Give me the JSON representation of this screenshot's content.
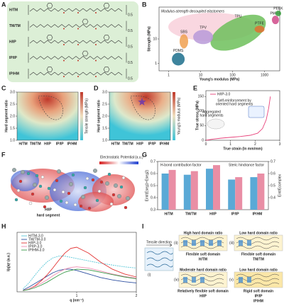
{
  "panel_labels": [
    "A",
    "B",
    "C",
    "D",
    "E",
    "F",
    "G",
    "H",
    "I"
  ],
  "a": {
    "rows": [
      "H/TM",
      "TM/TM",
      "H/IP",
      "IP/IP",
      "IP/HM"
    ],
    "repeat": "0.5"
  },
  "b": {
    "title": "Modulus-strength decoupled elastomers",
    "xlabel": "Young's modulus (MPa)",
    "ylabel": "Strength (MPa)",
    "log": true,
    "xlim": [
      0.5,
      3000
    ],
    "ylim": [
      0.5,
      200
    ],
    "xticks": [
      1,
      10,
      100,
      1000
    ],
    "yticks": [
      1,
      10
    ],
    "regions": [
      {
        "name": "PDMS",
        "x": 2,
        "y": 1.5,
        "color": "#1c6f8c"
      },
      {
        "name": "TPU",
        "x": 150,
        "y": 18,
        "color": "#6dbf5a"
      },
      {
        "name": "TPV",
        "x": 12,
        "y": 12,
        "color": "#b99ad8"
      },
      {
        "name": "SBS",
        "x": 3,
        "y": 8,
        "color": "#f0a050"
      },
      {
        "name": "PTFE",
        "x": 700,
        "y": 25,
        "color": "#e07030"
      },
      {
        "name": "PMMA",
        "x": 2200,
        "y": 60,
        "color": "#d04a8a"
      },
      {
        "name": "PEEK",
        "x": 2700,
        "y": 110,
        "color": "#3aa040"
      }
    ]
  },
  "c": {
    "ylabel": "Hard segment ratio",
    "colorbar": "Tensile strength (MPa)",
    "categories": [
      "H/TM",
      "TM/TM",
      "H/IP",
      "IP/IP",
      "IP/HM"
    ],
    "yticks": [
      {
        "value": 1,
        "label": "1.0"
      },
      1.5,
      {
        "value": 2,
        "label": "2.0"
      },
      2.5,
      {
        "value": 3,
        "label": "3.0"
      }
    ],
    "ylim": [
      1,
      3
    ]
  },
  "d": {
    "ylabel": "Hard segment ratio",
    "colorbar": "Young's modulus (MPa)",
    "categories": [
      "H/TM",
      "TM/TM",
      "H/IP",
      "IP/IP",
      "IP/HM"
    ],
    "yticks": [
      {
        "value": 1,
        "label": "1.0"
      },
      1.5,
      {
        "value": 2,
        "label": "2.0"
      },
      2.5,
      {
        "value": 3,
        "label": "3.0"
      }
    ],
    "ylim": [
      1,
      3
    ]
  },
  "f": {
    "title": "Electrostatic Potential",
    "unit": "(a.u.)",
    "name": "H/IP",
    "subtitle": "hard segment"
  },
  "i": {
    "numerals": [
      "(i)",
      "(ii)",
      "(iii)",
      "(iv)",
      "(v)"
    ],
    "tensile": "Tensile direction",
    "boxes": [
      {
        "top": "High hard domain ratio",
        "bottom": "Flexible soft domain",
        "names": [
          "H/TM"
        ]
      },
      {
        "top": "Low hard domain ratio",
        "bottom": "Flexible soft domain",
        "names": [
          "TM/TM"
        ]
      },
      {
        "top": "Moderate hard domain ratio",
        "bottom": "Relatively flexible soft domain",
        "names": [
          "H/IP"
        ]
      },
      {
        "top": "Low hard domain ratio",
        "bottom": "Rigid soft domain",
        "names": [
          "IP/IP",
          "IP/HM"
        ]
      }
    ]
  },
  "chart_data": [
    {
      "type": "line",
      "xlabel": "True strain (ln mm/mm)",
      "ylabel": "True stress (MPa)",
      "annotations": [
        "Self-reinforcement by",
        "oriented hard segments",
        "Aggregated",
        "hard segments"
      ],
      "x": [
        0,
        0.3,
        0.6,
        1,
        1.4,
        1.8,
        2.1,
        2.3,
        2.45,
        2.55,
        2.62
      ],
      "xlim": [
        0,
        3
      ],
      "ylim": [
        0,
        170
      ],
      "xticks": [
        0,
        1,
        2,
        3
      ],
      "yticks": [
        0,
        50,
        100,
        150
      ],
      "series": [
        {
          "name": "H/IP-3.0",
          "color": "#e8417a",
          "values": [
            0,
            4,
            7,
            10,
            13,
            17,
            24,
            40,
            70,
            110,
            150
          ]
        }
      ]
    },
    {
      "type": "bar",
      "ylabel": "Eint/(Eseg1+Eseg2)",
      "y2label": "Eint/Ecomplex",
      "annotations": [
        "H-bond contribution factor",
        "Steric hindrance factor"
      ],
      "categories": [
        "H/TM",
        "TM/TM",
        "H/IP",
        "IP/IP",
        "IP/HM"
      ],
      "ylim": [
        0.3,
        0.7
      ],
      "yticks": [
        0.3,
        0.4,
        0.5,
        0.6,
        0.7
      ],
      "y2lim": [
        0.3,
        0.7
      ],
      "y2ticks": [
        0.4,
        0.5,
        0.6,
        0.7
      ],
      "series": [
        {
          "color": "#5aa9d6",
          "values": [
            0.6,
            0.59,
            0.64,
            0.55,
            0.57
          ]
        },
        {
          "color": "#e98ea5",
          "axis": "y2",
          "values": [
            0.63,
            0.62,
            0.67,
            0.57,
            0.6
          ]
        }
      ]
    },
    {
      "type": "line",
      "xlabel": "q (nm⁻¹)",
      "ylabel": "I(q)q² (a.u.)",
      "x": [
        0.1,
        0.2,
        0.3,
        0.4,
        0.5,
        0.6,
        0.7,
        0.8,
        0.9,
        1.0,
        1.2,
        1.4,
        1.6,
        1.8,
        2.0
      ],
      "xlim": [
        0,
        2
      ],
      "ylim": [
        0,
        1
      ],
      "xticks": [
        1,
        2
      ],
      "series": [
        {
          "name": "H/TM-3.0",
          "color": "#5bc8d8",
          "values": [
            0.05,
            0.15,
            0.28,
            0.4,
            0.5,
            0.57,
            0.6,
            0.6,
            0.58,
            0.56,
            0.52,
            0.48,
            0.45,
            0.42,
            0.4
          ]
        },
        {
          "name": "TM/TM-3.0",
          "color": "#2d4fa0",
          "values": [
            0.03,
            0.08,
            0.14,
            0.2,
            0.26,
            0.32,
            0.36,
            0.38,
            0.38,
            0.36,
            0.3,
            0.24,
            0.2,
            0.17,
            0.15
          ]
        },
        {
          "name": "H/IP-3.0",
          "color": "#e33333",
          "values": [
            0.02,
            0.05,
            0.1,
            0.18,
            0.28,
            0.4,
            0.53,
            0.65,
            0.73,
            0.75,
            0.65,
            0.5,
            0.38,
            0.3,
            0.25
          ]
        },
        {
          "name": "IP/IP-3.0",
          "color": "#f08cb0",
          "values": [
            0.02,
            0.05,
            0.09,
            0.14,
            0.2,
            0.27,
            0.33,
            0.38,
            0.41,
            0.42,
            0.4,
            0.35,
            0.3,
            0.26,
            0.23
          ]
        },
        {
          "name": "IP/HM-3.0",
          "color": "#3a9a4a",
          "values": [
            0.02,
            0.04,
            0.07,
            0.11,
            0.16,
            0.22,
            0.28,
            0.33,
            0.36,
            0.38,
            0.37,
            0.33,
            0.29,
            0.25,
            0.22
          ]
        }
      ]
    }
  ]
}
